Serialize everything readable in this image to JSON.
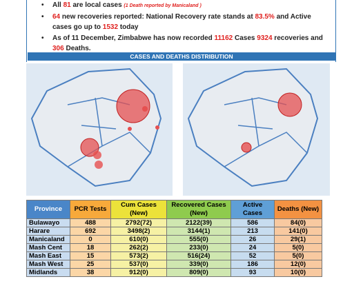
{
  "bullets": [
    [
      {
        "text": "All "
      },
      {
        "text": "81",
        "red": true
      },
      {
        "text": " are local cases "
      },
      {
        "text": "(1 Death reported by Manicaland )",
        "red": true,
        "small": true
      }
    ],
    [
      {
        "text": "64",
        "red": true
      },
      {
        "text": " new recoveries reported: National Recovery rate stands at "
      },
      {
        "text": "83.5%",
        "red": true
      },
      {
        "text": " and Active cases go up to "
      },
      {
        "text": "1532",
        "red": true
      },
      {
        "text": " today"
      }
    ],
    [
      {
        "text": "As of 11 December, Zimbabwe has now recorded "
      },
      {
        "text": "11162",
        "red": true
      },
      {
        "text": " Cases "
      },
      {
        "text": "9324",
        "red": true
      },
      {
        "text": " recoveries and "
      },
      {
        "text": "306",
        "red": true
      },
      {
        "text": " Deaths."
      }
    ]
  ],
  "banner": "CASES AND DEATHS DISTRIBUTION",
  "table": {
    "header": [
      "Province",
      "PCR Tests",
      "Cum Cases (New)",
      "Recovered Cases (New)",
      "Active Cases",
      "Deaths (New)"
    ],
    "header_colors": [
      "#4a86c8",
      "#f7a93b",
      "#ece23a",
      "#8fcb4e",
      "#5f9fd6",
      "#f39242"
    ],
    "cell_colors": [
      "#c9dcf0",
      "#fbd6a6",
      "#f6f1a4",
      "#cfe7b0",
      "#c7dcef",
      "#f8c9a0"
    ],
    "rows": [
      [
        "Bulawayo",
        "488",
        "2792(72)",
        "2122(39)",
        "586",
        "84(0)"
      ],
      [
        "Harare",
        "692",
        "3498(2)",
        "3144(1)",
        "213",
        "141(0)"
      ],
      [
        "Manicaland",
        "0",
        "610(0)",
        "555(0)",
        "26",
        "29(1)"
      ],
      [
        "Mash Cent",
        "18",
        "262(2)",
        "233(0)",
        "24",
        "5(0)"
      ],
      [
        "Mash East",
        "15",
        "573(2)",
        "516(24)",
        "52",
        "5(0)"
      ],
      [
        "Mash West",
        "25",
        "537(0)",
        "339(0)",
        "186",
        "12(0)"
      ],
      [
        "Midlands",
        "38",
        "912(0)",
        "809(0)",
        "93",
        "10(0)"
      ]
    ]
  }
}
